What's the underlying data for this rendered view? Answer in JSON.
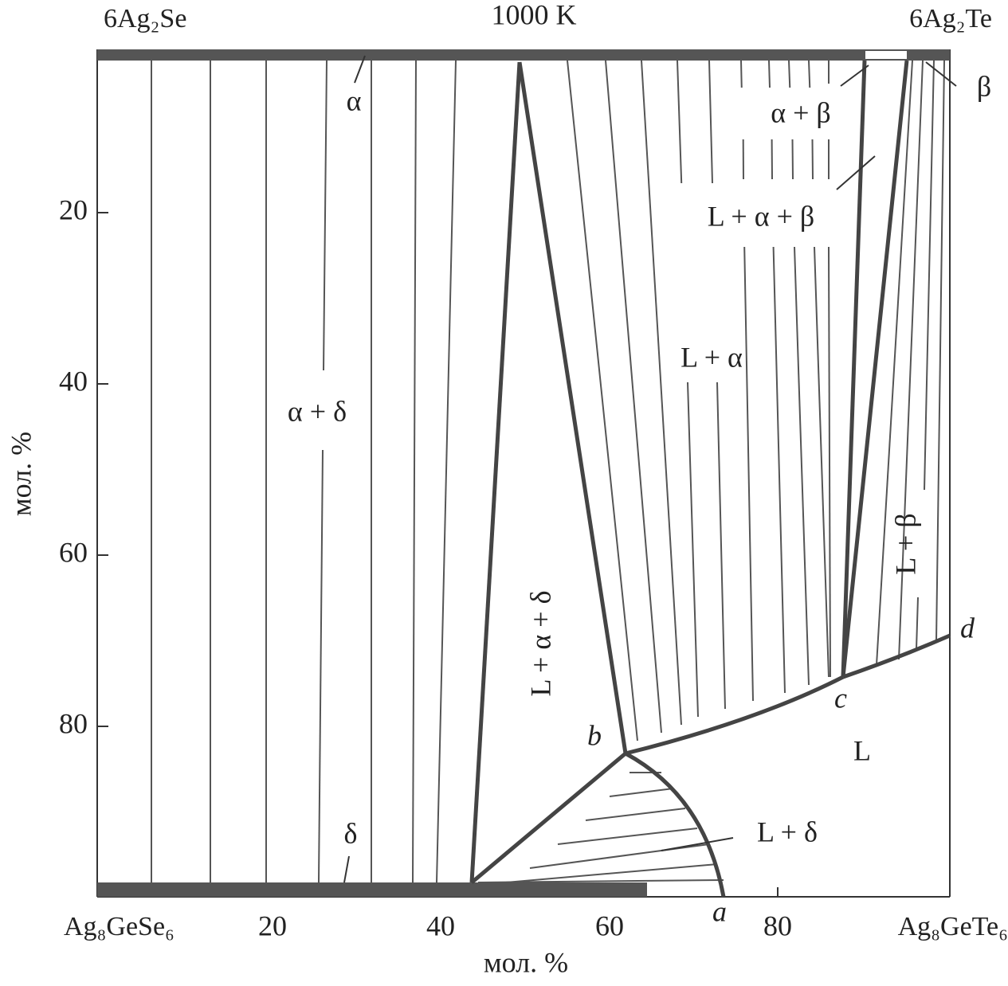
{
  "title": "1000 K",
  "corners": {
    "top_left": "6Ag₂Se",
    "top_right": "6Ag₂Te",
    "bottom_left": "Ag₈GeSe₆",
    "bottom_right": "Ag₈GeTe₆"
  },
  "axes": {
    "x_label": "мол. %",
    "y_label": "мол. %",
    "x_ticks": [
      "20",
      "40",
      "60",
      "80"
    ],
    "y_ticks": [
      "20",
      "40",
      "60",
      "80"
    ]
  },
  "phases": {
    "alpha": "α",
    "beta": "β",
    "delta": "δ",
    "alpha_beta": "α + β",
    "l_alpha_beta": "L + α + β",
    "l_alpha": "L + α",
    "alpha_delta": "α + δ",
    "l_alpha_delta": "L + α + δ",
    "l_beta": "L + β",
    "l": "L",
    "l_delta": "L + δ"
  },
  "points": {
    "a": "a",
    "b": "b",
    "c": "c",
    "d": "d"
  }
}
